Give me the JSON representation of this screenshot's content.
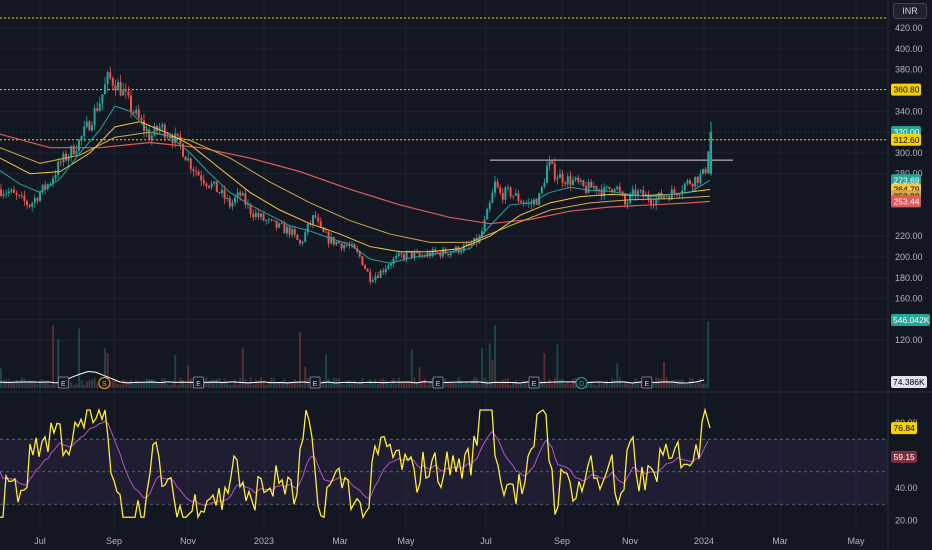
{
  "currency_button": "INR",
  "colors": {
    "up": "#26a69a",
    "down": "#ef5350",
    "ema_fast": "#26a69a",
    "ema_mid": "#f7c548",
    "ema_slow": "#d4a84a",
    "ema_long": "#e05a5a",
    "rsi": "#ffeb3b",
    "rsi_ma": "#b455c7",
    "grid": "#1f2330",
    "volume_ma": "#ffffff",
    "level_line": "#f5d200"
  },
  "chart_data": [
    {
      "type": "candlestick",
      "panel": "price",
      "y_ticks": [
        "420.00",
        "400.00",
        "380.00",
        "340.00",
        "300.00",
        "280.00",
        "220.00",
        "200.00",
        "180.00",
        "160.00",
        "140.00",
        "120.00"
      ],
      "y_tick_values": [
        420,
        400,
        380,
        340,
        300,
        280,
        220,
        200,
        180,
        160,
        140,
        120
      ],
      "x_labels": [
        "Jul",
        "Sep",
        "Nov",
        "2023",
        "Mar",
        "May",
        "Jul",
        "Sep",
        "Nov",
        "2024",
        "Mar",
        "May"
      ],
      "ylim": [
        100,
        440
      ],
      "horizontal_levels": [
        360.8,
        312.6,
        320.0
      ],
      "resistance_line": 293,
      "price_badges": [
        {
          "text": "360.80",
          "value": 360.8,
          "bg": "#f5d200",
          "fg": "#000000"
        },
        {
          "text": "320.00",
          "value": 320.0,
          "bg": "#26a69a",
          "fg": "#ffffff"
        },
        {
          "text": "312.60",
          "value": 312.6,
          "bg": "#f5d200",
          "fg": "#000000"
        },
        {
          "text": "273.69",
          "value": 273.69,
          "bg": "#26a69a",
          "fg": "#ffffff"
        },
        {
          "text": "264.79",
          "value": 264.79,
          "bg": "#f7c548",
          "fg": "#000000"
        },
        {
          "text": "258.33",
          "value": 258.33,
          "bg": "#d4a84a",
          "fg": "#000000"
        },
        {
          "text": "253.44",
          "value": 253.44,
          "bg": "#e05a5a",
          "fg": "#ffffff"
        }
      ],
      "price_path": [
        [
          0,
          265
        ],
        [
          10,
          262
        ],
        [
          20,
          255
        ],
        [
          30,
          250
        ],
        [
          40,
          262
        ],
        [
          50,
          272
        ],
        [
          60,
          290
        ],
        [
          70,
          300
        ],
        [
          80,
          312
        ],
        [
          90,
          330
        ],
        [
          100,
          350
        ],
        [
          108,
          372
        ],
        [
          115,
          368
        ],
        [
          122,
          360
        ],
        [
          130,
          345
        ],
        [
          140,
          330
        ],
        [
          150,
          315
        ],
        [
          160,
          325
        ],
        [
          170,
          318
        ],
        [
          180,
          308
        ],
        [
          190,
          290
        ],
        [
          200,
          278
        ],
        [
          210,
          270
        ],
        [
          220,
          262
        ],
        [
          230,
          250
        ],
        [
          240,
          260
        ],
        [
          250,
          245
        ],
        [
          260,
          238
        ],
        [
          270,
          232
        ],
        [
          280,
          228
        ],
        [
          290,
          225
        ],
        [
          300,
          212
        ],
        [
          310,
          232
        ],
        [
          315,
          240
        ],
        [
          320,
          225
        ],
        [
          330,
          216
        ],
        [
          340,
          213
        ],
        [
          350,
          210
        ],
        [
          360,
          200
        ],
        [
          370,
          180
        ],
        [
          380,
          185
        ],
        [
          390,
          195
        ],
        [
          400,
          200
        ],
        [
          410,
          203
        ],
        [
          420,
          200
        ],
        [
          430,
          203
        ],
        [
          440,
          204
        ],
        [
          450,
          205
        ],
        [
          460,
          208
        ],
        [
          470,
          210
        ],
        [
          480,
          218
        ],
        [
          490,
          250
        ],
        [
          495,
          270
        ],
        [
          500,
          260
        ],
        [
          510,
          262
        ],
        [
          520,
          255
        ],
        [
          530,
          250
        ],
        [
          540,
          258
        ],
        [
          548,
          290
        ],
        [
          555,
          280
        ],
        [
          565,
          275
        ],
        [
          575,
          272
        ],
        [
          585,
          265
        ],
        [
          595,
          268
        ],
        [
          605,
          262
        ],
        [
          615,
          270
        ],
        [
          625,
          250
        ],
        [
          635,
          262
        ],
        [
          645,
          258
        ],
        [
          655,
          255
        ],
        [
          665,
          260
        ],
        [
          675,
          262
        ],
        [
          685,
          270
        ],
        [
          695,
          275
        ],
        [
          705,
          280
        ],
        [
          710,
          320
        ]
      ],
      "ema_fast": [
        [
          0,
          283
        ],
        [
          20,
          270
        ],
        [
          40,
          262
        ],
        [
          60,
          275
        ],
        [
          80,
          300
        ],
        [
          100,
          322
        ],
        [
          115,
          345
        ],
        [
          130,
          340
        ],
        [
          150,
          320
        ],
        [
          170,
          316
        ],
        [
          190,
          300
        ],
        [
          210,
          280
        ],
        [
          230,
          262
        ],
        [
          250,
          250
        ],
        [
          270,
          240
        ],
        [
          290,
          230
        ],
        [
          310,
          225
        ],
        [
          330,
          218
        ],
        [
          350,
          212
        ],
        [
          370,
          198
        ],
        [
          390,
          194
        ],
        [
          410,
          199
        ],
        [
          430,
          202
        ],
        [
          450,
          205
        ],
        [
          470,
          208
        ],
        [
          490,
          230
        ],
        [
          510,
          250
        ],
        [
          530,
          252
        ],
        [
          550,
          262
        ],
        [
          570,
          267
        ],
        [
          590,
          264
        ],
        [
          610,
          263
        ],
        [
          630,
          260
        ],
        [
          650,
          258
        ],
        [
          670,
          260
        ],
        [
          690,
          262
        ],
        [
          710,
          273.69
        ]
      ],
      "ema_mid": [
        [
          0,
          295
        ],
        [
          30,
          280
        ],
        [
          60,
          282
        ],
        [
          90,
          300
        ],
        [
          115,
          325
        ],
        [
          140,
          330
        ],
        [
          165,
          320
        ],
        [
          190,
          308
        ],
        [
          220,
          285
        ],
        [
          250,
          262
        ],
        [
          280,
          245
        ],
        [
          310,
          232
        ],
        [
          340,
          222
        ],
        [
          370,
          210
        ],
        [
          400,
          205
        ],
        [
          430,
          205
        ],
        [
          460,
          208
        ],
        [
          490,
          220
        ],
        [
          520,
          240
        ],
        [
          550,
          252
        ],
        [
          580,
          258
        ],
        [
          610,
          260
        ],
        [
          640,
          259
        ],
        [
          670,
          260
        ],
        [
          710,
          264.79
        ]
      ],
      "ema_slow": [
        [
          0,
          305
        ],
        [
          40,
          290
        ],
        [
          80,
          298
        ],
        [
          115,
          315
        ],
        [
          150,
          320
        ],
        [
          190,
          312
        ],
        [
          230,
          295
        ],
        [
          270,
          272
        ],
        [
          310,
          252
        ],
        [
          350,
          235
        ],
        [
          390,
          222
        ],
        [
          430,
          214
        ],
        [
          470,
          214
        ],
        [
          510,
          230
        ],
        [
          550,
          245
        ],
        [
          590,
          252
        ],
        [
          630,
          255
        ],
        [
          670,
          256
        ],
        [
          710,
          258.33
        ]
      ],
      "ema_long": [
        [
          0,
          318
        ],
        [
          50,
          305
        ],
        [
          100,
          305
        ],
        [
          150,
          310
        ],
        [
          200,
          305
        ],
        [
          250,
          295
        ],
        [
          300,
          282
        ],
        [
          350,
          265
        ],
        [
          400,
          250
        ],
        [
          450,
          238
        ],
        [
          490,
          232
        ],
        [
          530,
          236
        ],
        [
          570,
          244
        ],
        [
          610,
          248
        ],
        [
          650,
          250
        ],
        [
          690,
          252
        ],
        [
          710,
          253.44
        ]
      ],
      "event_markers": [
        {
          "x_frac": 0.068,
          "label": "E",
          "kind": "earnings"
        },
        {
          "x_frac": 0.112,
          "label": "S",
          "kind": "split"
        },
        {
          "x_frac": 0.213,
          "label": "E",
          "kind": "earnings"
        },
        {
          "x_frac": 0.338,
          "label": "E",
          "kind": "earnings"
        },
        {
          "x_frac": 0.47,
          "label": "E",
          "kind": "earnings"
        },
        {
          "x_frac": 0.573,
          "label": "E",
          "kind": "earnings"
        },
        {
          "x_frac": 0.624,
          "label": "D",
          "kind": "dividend"
        },
        {
          "x_frac": 0.694,
          "label": "E",
          "kind": "earnings"
        }
      ]
    },
    {
      "type": "bar",
      "panel": "volume",
      "badges": [
        {
          "text": "546.042K",
          "bg": "#26a69a",
          "fg": "#ffffff"
        },
        {
          "text": "74.386K",
          "bg": "#e0e3eb",
          "fg": "#000000"
        }
      ],
      "spikes": [
        [
          52,
          0.9
        ],
        [
          58,
          0.7
        ],
        [
          80,
          0.85
        ],
        [
          108,
          0.5
        ],
        [
          300,
          0.8
        ],
        [
          495,
          0.9
        ],
        [
          545,
          0.5
        ],
        [
          708,
          0.95
        ]
      ]
    },
    {
      "type": "line",
      "panel": "rsi",
      "y_ticks": [
        "80.00",
        "40.00",
        "20.00"
      ],
      "y_tick_values": [
        80,
        40,
        20
      ],
      "ylim": [
        18,
        95
      ],
      "bands": [
        70,
        50,
        30
      ],
      "badges": [
        {
          "text": "76.84",
          "value": 76.84,
          "bg": "#f5d200",
          "fg": "#000000"
        },
        {
          "text": "59.15",
          "value": 59.15,
          "bg": "#7e2f3e",
          "fg": "#ffffff"
        }
      ]
    }
  ]
}
